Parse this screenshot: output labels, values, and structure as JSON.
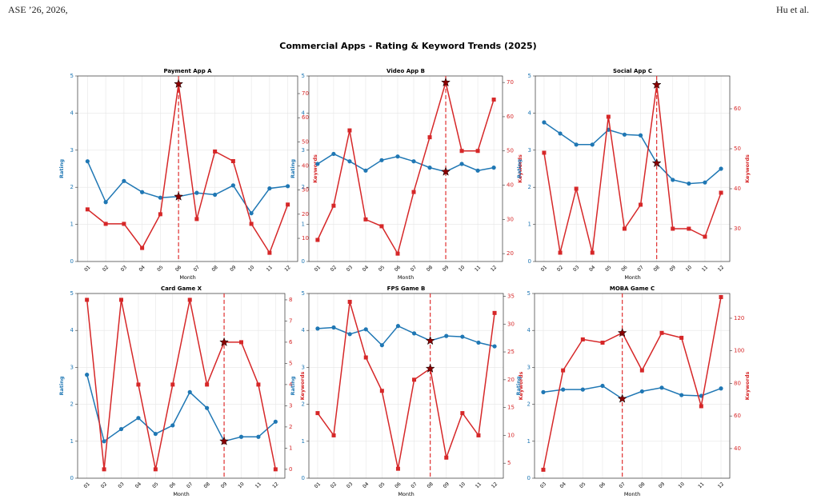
{
  "header": {
    "left": "ASE ’26, 2026,",
    "right": "Hu et al."
  },
  "suptitle": "Commercial Apps - Rating & Keyword Trends (2025)",
  "chart_data": [
    {
      "type": "line",
      "title": "Payment App A",
      "xlabel": "Month",
      "ylabel": "Rating",
      "y2label": "Keywords",
      "categories": [
        "01",
        "02",
        "03",
        "04",
        "05",
        "06",
        "07",
        "08",
        "09",
        "10",
        "11",
        "12"
      ],
      "highlight": "06",
      "series": [
        {
          "color": "#1f77b4",
          "values": [
            2.7,
            1.6,
            2.17,
            1.87,
            1.72,
            1.75,
            1.85,
            1.8,
            2.05,
            1.3,
            1.97,
            2.03
          ]
        },
        {
          "color": "#d62728",
          "axis": "y2",
          "values": [
            22,
            16,
            16,
            6,
            20,
            74,
            18,
            46,
            42,
            16,
            4,
            24
          ]
        }
      ],
      "ylim": [
        0,
        5
      ],
      "yticks": [
        0,
        1,
        2,
        3,
        4,
        5
      ],
      "y2lim": [
        0.4,
        77.3
      ],
      "y2ticks": [
        10,
        20,
        30,
        40,
        50,
        60,
        70
      ],
      "grid": true
    },
    {
      "type": "line",
      "title": "Video App B",
      "xlabel": "Month",
      "ylabel": "Rating",
      "y2label": "Keywords",
      "categories": [
        "01",
        "02",
        "03",
        "04",
        "05",
        "06",
        "07",
        "08",
        "09",
        "10",
        "11",
        "12"
      ],
      "highlight": "09",
      "series": [
        {
          "color": "#1f77b4",
          "values": [
            2.63,
            2.9,
            2.7,
            2.45,
            2.73,
            2.83,
            2.7,
            2.53,
            2.42,
            2.63,
            2.45,
            2.53
          ]
        },
        {
          "color": "#d62728",
          "axis": "y2",
          "values": [
            24,
            34,
            56,
            30,
            28,
            20,
            38,
            54,
            70,
            50,
            50,
            65
          ]
        }
      ],
      "ylim": [
        0,
        5
      ],
      "yticks": [
        0,
        1,
        2,
        3,
        4,
        5
      ],
      "y2lim": [
        17.7,
        71.9
      ],
      "y2ticks": [
        20,
        30,
        40,
        50,
        60,
        70
      ],
      "grid": true
    },
    {
      "type": "line",
      "title": "Social App C",
      "xlabel": "Month",
      "ylabel": "Rating",
      "y2label": "Keywords",
      "categories": [
        "01",
        "02",
        "03",
        "04",
        "05",
        "06",
        "07",
        "08",
        "09",
        "10",
        "11",
        "12"
      ],
      "highlight": "08",
      "series": [
        {
          "color": "#1f77b4",
          "values": [
            3.75,
            3.45,
            3.15,
            3.15,
            3.55,
            3.42,
            3.4,
            2.65,
            2.2,
            2.1,
            2.13,
            2.5
          ]
        },
        {
          "color": "#d62728",
          "axis": "y2",
          "values": [
            49,
            24,
            40,
            24,
            58,
            30,
            36,
            66,
            30,
            30,
            28,
            39
          ]
        }
      ],
      "ylim": [
        0,
        5
      ],
      "yticks": [
        0,
        1,
        2,
        3,
        4,
        5
      ],
      "y2lim": [
        21.8,
        68.2
      ],
      "y2ticks": [
        30,
        40,
        50,
        60
      ],
      "grid": true
    },
    {
      "type": "line",
      "title": "Card Game X",
      "xlabel": "Month",
      "ylabel": "Rating",
      "y2label": "Keywords",
      "categories": [
        "01",
        "02",
        "03",
        "04",
        "05",
        "06",
        "07",
        "08",
        "09",
        "10",
        "11",
        "12"
      ],
      "highlight": "09",
      "series": [
        {
          "color": "#1f77b4",
          "values": [
            2.8,
            1.0,
            1.33,
            1.63,
            1.2,
            1.43,
            2.33,
            1.9,
            1.0,
            1.12,
            1.12,
            1.53
          ]
        },
        {
          "color": "#d62728",
          "axis": "y2",
          "values": [
            8,
            0,
            8,
            4,
            0,
            4,
            8,
            4,
            6,
            6,
            4,
            0
          ]
        }
      ],
      "ylim": [
        0,
        5
      ],
      "yticks": [
        0,
        1,
        2,
        3,
        4,
        5
      ],
      "y2lim": [
        -0.42,
        8.3
      ],
      "y2ticks": [
        0,
        1,
        2,
        3,
        4,
        5,
        6,
        7,
        8
      ],
      "grid": true
    },
    {
      "type": "line",
      "title": "FPS Game B",
      "xlabel": "Month",
      "ylabel": "Rating",
      "y2label": "Keywords",
      "categories": [
        "01",
        "02",
        "03",
        "04",
        "05",
        "06",
        "07",
        "08",
        "09",
        "10",
        "11",
        "12"
      ],
      "highlight": "08",
      "series": [
        {
          "color": "#1f77b4",
          "values": [
            4.05,
            4.08,
            3.9,
            4.03,
            3.6,
            4.12,
            3.92,
            3.72,
            3.85,
            3.83,
            3.67,
            3.57
          ]
        },
        {
          "color": "#d62728",
          "axis": "y2",
          "values": [
            14,
            10,
            34,
            24,
            18,
            4,
            20,
            22,
            6,
            14,
            10,
            32
          ]
        }
      ],
      "ylim": [
        0,
        5
      ],
      "yticks": [
        0,
        1,
        2,
        3,
        4,
        5
      ],
      "y2lim": [
        2.3,
        35.5
      ],
      "y2ticks": [
        5,
        10,
        15,
        20,
        25,
        30,
        35
      ],
      "grid": true
    },
    {
      "type": "line",
      "title": "MOBA Game C",
      "xlabel": "Month",
      "ylabel": "Rating",
      "y2label": "Keywords",
      "categories": [
        "03",
        "04",
        "05",
        "06",
        "07",
        "08",
        "09",
        "10",
        "11",
        "12"
      ],
      "highlight": "07",
      "series": [
        {
          "color": "#1f77b4",
          "values": [
            2.33,
            2.4,
            2.4,
            2.5,
            2.15,
            2.35,
            2.45,
            2.25,
            2.23,
            2.43
          ]
        },
        {
          "color": "#d62728",
          "axis": "y2",
          "values": [
            27,
            88,
            107,
            105,
            111,
            88,
            111,
            108,
            66,
            133
          ]
        }
      ],
      "ylim": [
        0,
        5
      ],
      "yticks": [
        0,
        1,
        2,
        3,
        4,
        5
      ],
      "y2lim": [
        21.8,
        135.2
      ],
      "y2ticks": [
        40,
        60,
        80,
        100,
        120
      ],
      "grid": true
    }
  ]
}
